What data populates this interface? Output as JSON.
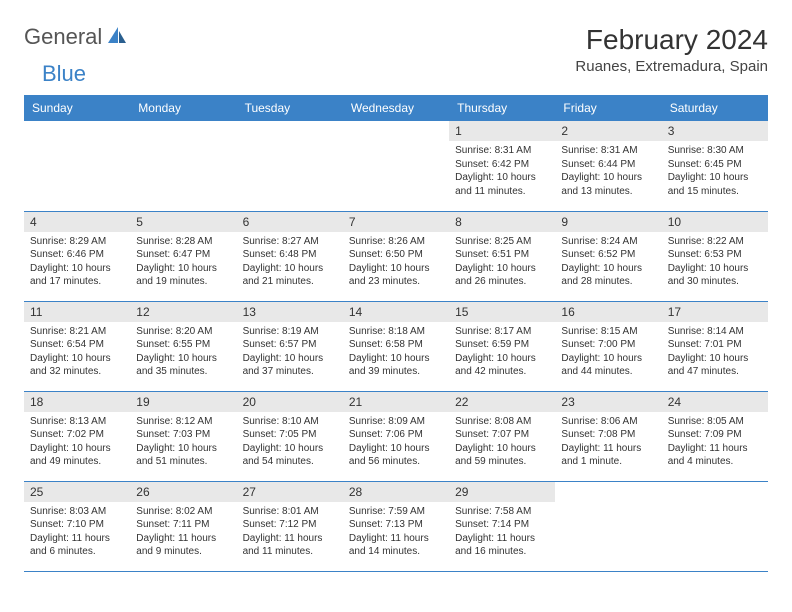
{
  "brand": {
    "name_part1": "General",
    "name_part2": "Blue"
  },
  "header": {
    "title": "February 2024",
    "location": "Ruanes, Extremadura, Spain"
  },
  "colors": {
    "primary": "#3b82c7",
    "daynum_bg": "#e8e8e8",
    "text": "#333333"
  },
  "weekdays": [
    "Sunday",
    "Monday",
    "Tuesday",
    "Wednesday",
    "Thursday",
    "Friday",
    "Saturday"
  ],
  "weeks": [
    [
      null,
      null,
      null,
      null,
      {
        "n": "1",
        "sr": "Sunrise: 8:31 AM",
        "ss": "Sunset: 6:42 PM",
        "dl": "Daylight: 10 hours and 11 minutes."
      },
      {
        "n": "2",
        "sr": "Sunrise: 8:31 AM",
        "ss": "Sunset: 6:44 PM",
        "dl": "Daylight: 10 hours and 13 minutes."
      },
      {
        "n": "3",
        "sr": "Sunrise: 8:30 AM",
        "ss": "Sunset: 6:45 PM",
        "dl": "Daylight: 10 hours and 15 minutes."
      }
    ],
    [
      {
        "n": "4",
        "sr": "Sunrise: 8:29 AM",
        "ss": "Sunset: 6:46 PM",
        "dl": "Daylight: 10 hours and 17 minutes."
      },
      {
        "n": "5",
        "sr": "Sunrise: 8:28 AM",
        "ss": "Sunset: 6:47 PM",
        "dl": "Daylight: 10 hours and 19 minutes."
      },
      {
        "n": "6",
        "sr": "Sunrise: 8:27 AM",
        "ss": "Sunset: 6:48 PM",
        "dl": "Daylight: 10 hours and 21 minutes."
      },
      {
        "n": "7",
        "sr": "Sunrise: 8:26 AM",
        "ss": "Sunset: 6:50 PM",
        "dl": "Daylight: 10 hours and 23 minutes."
      },
      {
        "n": "8",
        "sr": "Sunrise: 8:25 AM",
        "ss": "Sunset: 6:51 PM",
        "dl": "Daylight: 10 hours and 26 minutes."
      },
      {
        "n": "9",
        "sr": "Sunrise: 8:24 AM",
        "ss": "Sunset: 6:52 PM",
        "dl": "Daylight: 10 hours and 28 minutes."
      },
      {
        "n": "10",
        "sr": "Sunrise: 8:22 AM",
        "ss": "Sunset: 6:53 PM",
        "dl": "Daylight: 10 hours and 30 minutes."
      }
    ],
    [
      {
        "n": "11",
        "sr": "Sunrise: 8:21 AM",
        "ss": "Sunset: 6:54 PM",
        "dl": "Daylight: 10 hours and 32 minutes."
      },
      {
        "n": "12",
        "sr": "Sunrise: 8:20 AM",
        "ss": "Sunset: 6:55 PM",
        "dl": "Daylight: 10 hours and 35 minutes."
      },
      {
        "n": "13",
        "sr": "Sunrise: 8:19 AM",
        "ss": "Sunset: 6:57 PM",
        "dl": "Daylight: 10 hours and 37 minutes."
      },
      {
        "n": "14",
        "sr": "Sunrise: 8:18 AM",
        "ss": "Sunset: 6:58 PM",
        "dl": "Daylight: 10 hours and 39 minutes."
      },
      {
        "n": "15",
        "sr": "Sunrise: 8:17 AM",
        "ss": "Sunset: 6:59 PM",
        "dl": "Daylight: 10 hours and 42 minutes."
      },
      {
        "n": "16",
        "sr": "Sunrise: 8:15 AM",
        "ss": "Sunset: 7:00 PM",
        "dl": "Daylight: 10 hours and 44 minutes."
      },
      {
        "n": "17",
        "sr": "Sunrise: 8:14 AM",
        "ss": "Sunset: 7:01 PM",
        "dl": "Daylight: 10 hours and 47 minutes."
      }
    ],
    [
      {
        "n": "18",
        "sr": "Sunrise: 8:13 AM",
        "ss": "Sunset: 7:02 PM",
        "dl": "Daylight: 10 hours and 49 minutes."
      },
      {
        "n": "19",
        "sr": "Sunrise: 8:12 AM",
        "ss": "Sunset: 7:03 PM",
        "dl": "Daylight: 10 hours and 51 minutes."
      },
      {
        "n": "20",
        "sr": "Sunrise: 8:10 AM",
        "ss": "Sunset: 7:05 PM",
        "dl": "Daylight: 10 hours and 54 minutes."
      },
      {
        "n": "21",
        "sr": "Sunrise: 8:09 AM",
        "ss": "Sunset: 7:06 PM",
        "dl": "Daylight: 10 hours and 56 minutes."
      },
      {
        "n": "22",
        "sr": "Sunrise: 8:08 AM",
        "ss": "Sunset: 7:07 PM",
        "dl": "Daylight: 10 hours and 59 minutes."
      },
      {
        "n": "23",
        "sr": "Sunrise: 8:06 AM",
        "ss": "Sunset: 7:08 PM",
        "dl": "Daylight: 11 hours and 1 minute."
      },
      {
        "n": "24",
        "sr": "Sunrise: 8:05 AM",
        "ss": "Sunset: 7:09 PM",
        "dl": "Daylight: 11 hours and 4 minutes."
      }
    ],
    [
      {
        "n": "25",
        "sr": "Sunrise: 8:03 AM",
        "ss": "Sunset: 7:10 PM",
        "dl": "Daylight: 11 hours and 6 minutes."
      },
      {
        "n": "26",
        "sr": "Sunrise: 8:02 AM",
        "ss": "Sunset: 7:11 PM",
        "dl": "Daylight: 11 hours and 9 minutes."
      },
      {
        "n": "27",
        "sr": "Sunrise: 8:01 AM",
        "ss": "Sunset: 7:12 PM",
        "dl": "Daylight: 11 hours and 11 minutes."
      },
      {
        "n": "28",
        "sr": "Sunrise: 7:59 AM",
        "ss": "Sunset: 7:13 PM",
        "dl": "Daylight: 11 hours and 14 minutes."
      },
      {
        "n": "29",
        "sr": "Sunrise: 7:58 AM",
        "ss": "Sunset: 7:14 PM",
        "dl": "Daylight: 11 hours and 16 minutes."
      },
      null,
      null
    ]
  ]
}
